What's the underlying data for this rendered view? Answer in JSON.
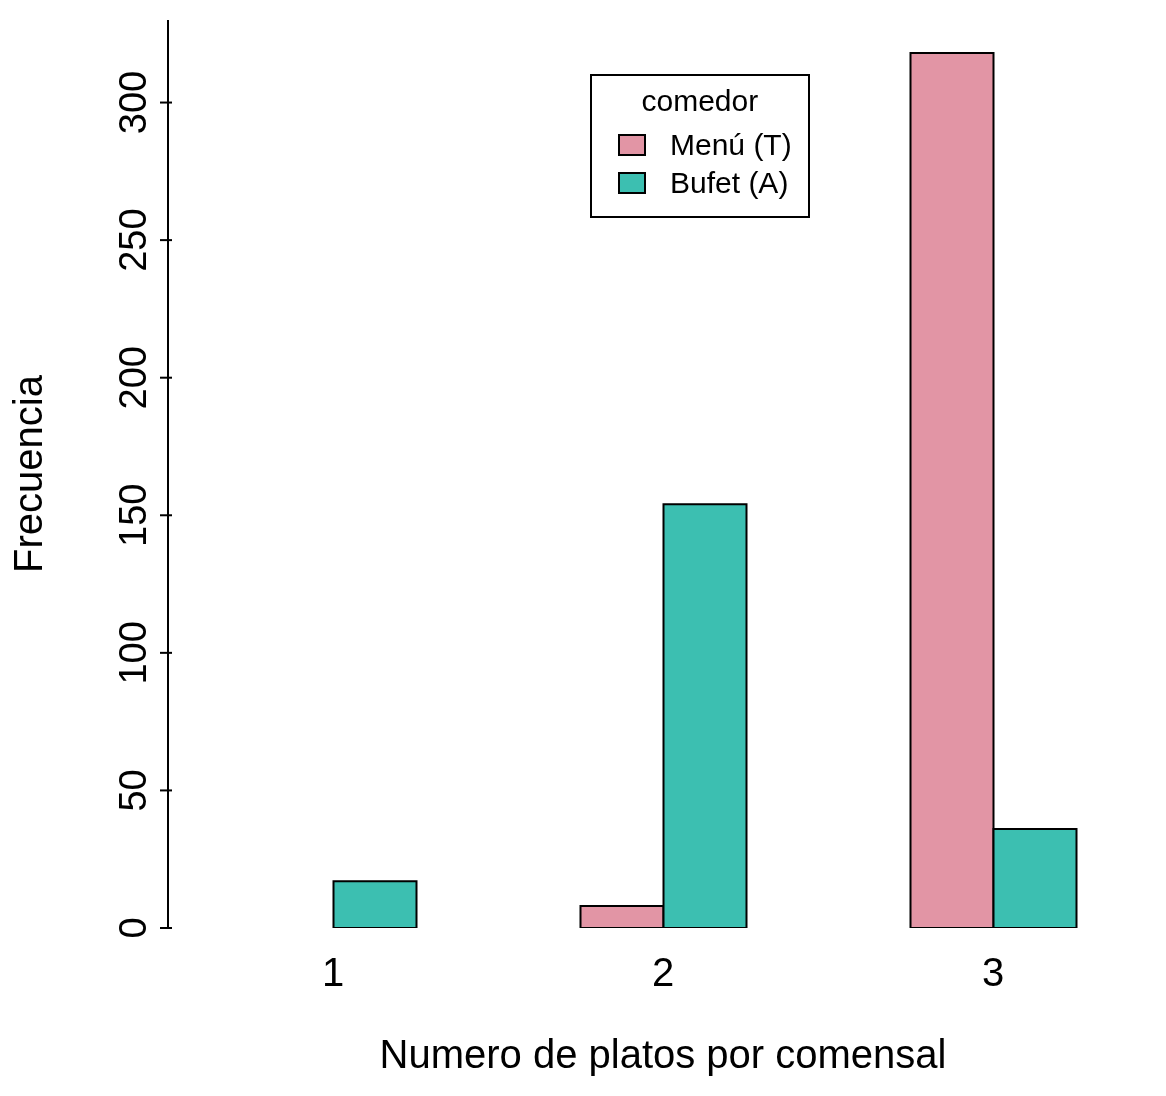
{
  "chart_data": {
    "type": "bar",
    "xlabel": "Numero de platos por comensal",
    "ylabel": "Frecuencia",
    "legend_title": "comedor",
    "categories": [
      "1",
      "2",
      "3"
    ],
    "series": [
      {
        "name": "Menú (T)",
        "color": "#e295a5",
        "values": [
          0,
          8,
          318
        ]
      },
      {
        "name": "Bufet (A)",
        "color": "#3cbfb1",
        "values": [
          17,
          154,
          36
        ]
      }
    ],
    "ylim": [
      0,
      330
    ],
    "yticks": [
      0,
      50,
      100,
      150,
      200,
      250,
      300
    ],
    "grid": false,
    "legend": "top"
  }
}
